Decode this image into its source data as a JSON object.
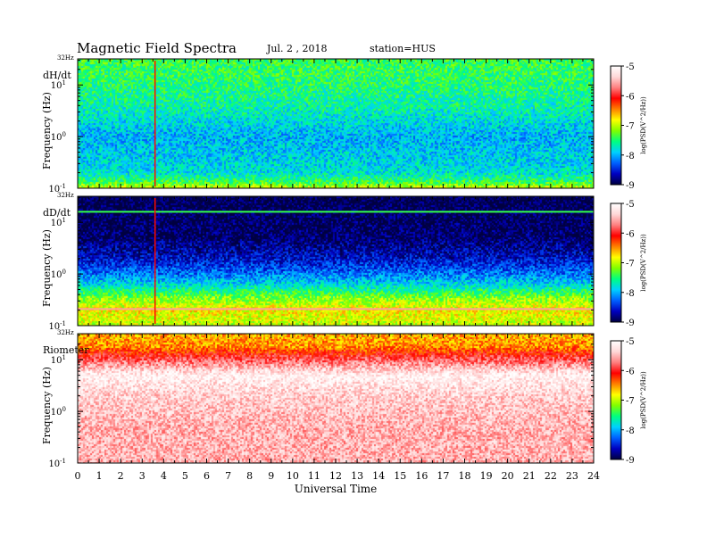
{
  "header": {
    "title": "Magnetic  Field  Spectra",
    "date": "Jul.  2  , 2018",
    "station": "station=HUS"
  },
  "colors": {
    "colormap": [
      "#000040",
      "#0000c0",
      "#0060ff",
      "#00d0ff",
      "#00ff80",
      "#80ff00",
      "#ffff00",
      "#ff8000",
      "#ff0000",
      "#ff8080",
      "#ffd8d8",
      "#ffffff"
    ]
  },
  "chart_data": [
    {
      "type": "heatmap",
      "panel_label": "dH/dt",
      "top_label": "32Hz",
      "ylabel": "Frequency  (Hz)",
      "yscale": "log",
      "ylim_hz": [
        0.1,
        32
      ],
      "y_ticks": [
        {
          "base": "10",
          "exp": "-1",
          "value": 0.1
        },
        {
          "base": "10",
          "exp": "0",
          "value": 1
        },
        {
          "base": "10",
          "exp": "1",
          "value": 10
        }
      ],
      "x_ticks": [
        "0",
        "1",
        "2",
        "3",
        "4",
        "5",
        "6",
        "7",
        "8",
        "9",
        "10",
        "11",
        "12",
        "13",
        "14",
        "15",
        "16",
        "17",
        "18",
        "19",
        "20",
        "21",
        "22",
        "23",
        "24"
      ],
      "xlim_hours": [
        0,
        24
      ],
      "profile": [
        [
          0.1,
          -6.9
        ],
        [
          0.13,
          -7.4
        ],
        [
          0.2,
          -7.8
        ],
        [
          1.0,
          -8.0
        ],
        [
          3.0,
          -7.7
        ],
        [
          10,
          -7.5
        ],
        [
          32,
          -7.4
        ]
      ],
      "spikes_hours": [
        3.6
      ],
      "lines_hz": [],
      "colorbar": {
        "label": "log(PSD(V^2/Hz))",
        "range": [
          -9,
          -5
        ],
        "ticks": [
          "-5",
          "-6",
          "-7",
          "-8",
          "-9"
        ]
      }
    },
    {
      "type": "heatmap",
      "panel_label": "dD/dt",
      "top_label": "32Hz",
      "ylabel": "Frequency  (Hz)",
      "yscale": "log",
      "ylim_hz": [
        0.1,
        32
      ],
      "y_ticks": [
        {
          "base": "10",
          "exp": "-1",
          "value": 0.1
        },
        {
          "base": "10",
          "exp": "0",
          "value": 1
        },
        {
          "base": "10",
          "exp": "1",
          "value": 10
        }
      ],
      "x_ticks": [
        "0",
        "1",
        "2",
        "3",
        "4",
        "5",
        "6",
        "7",
        "8",
        "9",
        "10",
        "11",
        "12",
        "13",
        "14",
        "15",
        "16",
        "17",
        "18",
        "19",
        "20",
        "21",
        "22",
        "23",
        "24"
      ],
      "xlim_hours": [
        0,
        24
      ],
      "profile": [
        [
          0.1,
          -7.0
        ],
        [
          0.2,
          -6.8
        ],
        [
          0.35,
          -7.2
        ],
        [
          0.6,
          -7.8
        ],
        [
          1.0,
          -8.2
        ],
        [
          2.0,
          -8.6
        ],
        [
          5.0,
          -8.9
        ],
        [
          32,
          -9.0
        ]
      ],
      "spikes_hours": [
        3.6
      ],
      "lines_hz": [
        {
          "hz": 0.21,
          "level": -5.6
        },
        {
          "hz": 16,
          "level": -7.4
        }
      ],
      "colorbar": {
        "label": "log(PSD(V^2/Hz))",
        "range": [
          -9,
          -5
        ],
        "ticks": [
          "-5",
          "-6",
          "-7",
          "-8",
          "-9"
        ]
      }
    },
    {
      "type": "heatmap",
      "panel_label": "Riometer",
      "top_label": "32Hz",
      "ylabel": "Frequency  (Hz)",
      "yscale": "log",
      "ylim_hz": [
        0.1,
        32
      ],
      "y_ticks": [
        {
          "base": "10",
          "exp": "-1",
          "value": 0.1
        },
        {
          "base": "10",
          "exp": "0",
          "value": 1
        },
        {
          "base": "10",
          "exp": "1",
          "value": 10
        }
      ],
      "x_ticks": [
        "0",
        "1",
        "2",
        "3",
        "4",
        "5",
        "6",
        "7",
        "8",
        "9",
        "10",
        "11",
        "12",
        "13",
        "14",
        "15",
        "16",
        "17",
        "18",
        "19",
        "20",
        "21",
        "22",
        "23",
        "24"
      ],
      "xlim_hours": [
        0,
        24
      ],
      "profile": [
        [
          0.1,
          -5.5
        ],
        [
          0.5,
          -5.5
        ],
        [
          2.0,
          -5.35
        ],
        [
          5.0,
          -5.1
        ],
        [
          8.0,
          -5.6
        ],
        [
          12,
          -6.0
        ],
        [
          18,
          -6.5
        ],
        [
          32,
          -6.6
        ]
      ],
      "spikes_hours": [],
      "lines_hz": [],
      "colorbar": {
        "label": "log(PSD(V^2/Hz))",
        "range": [
          -9,
          -5
        ],
        "ticks": [
          "-5",
          "-6",
          "-7",
          "-8",
          "-9"
        ]
      }
    }
  ],
  "xaxis": {
    "label": "Universal  Time"
  }
}
